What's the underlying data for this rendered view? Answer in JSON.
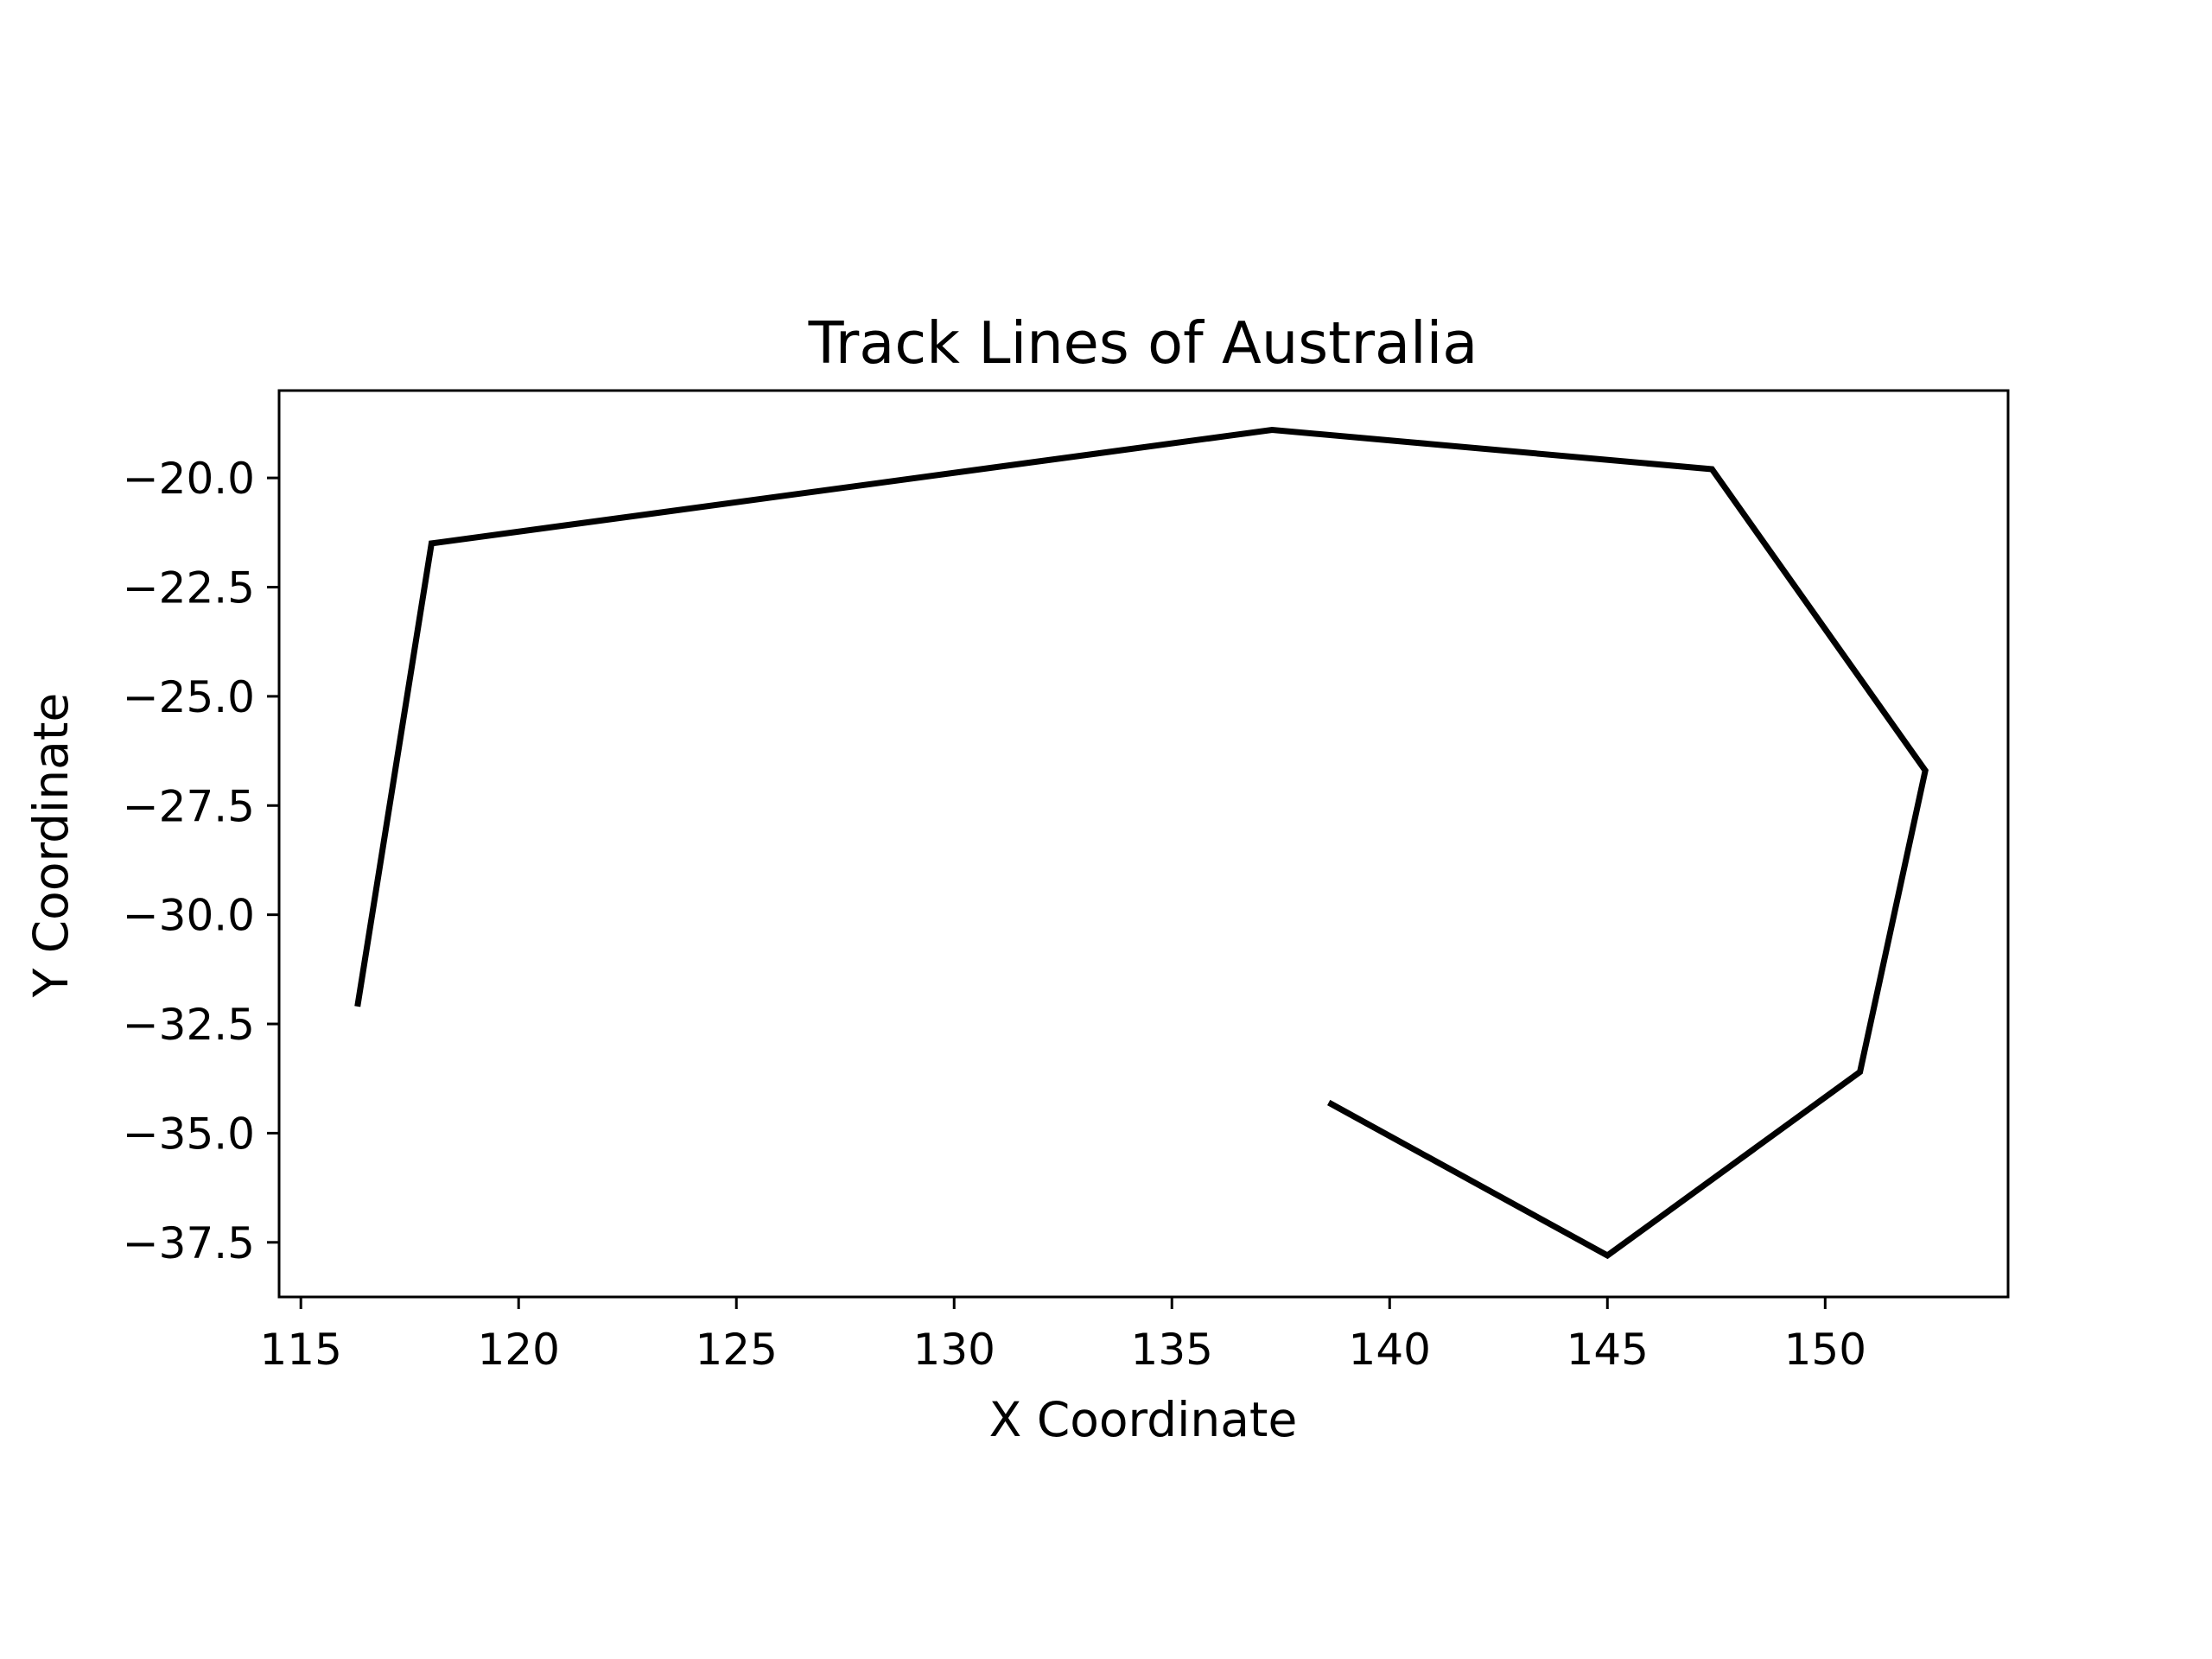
{
  "chart_data": {
    "type": "line",
    "title": "Track Lines of Australia",
    "xlabel": "X Coordinate",
    "ylabel": "Y Coordinate",
    "xlim": [
      114.5,
      154.2
    ],
    "ylim": [
      -38.75,
      -18.0
    ],
    "xticks": [
      115,
      120,
      125,
      130,
      135,
      140,
      145,
      150
    ],
    "xtick_labels": [
      "115",
      "120",
      "125",
      "130",
      "135",
      "140",
      "145",
      "150"
    ],
    "yticks": [
      -20.0,
      -22.5,
      -25.0,
      -27.5,
      -30.0,
      -32.5,
      -35.0,
      -37.5
    ],
    "ytick_labels": [
      "−20.0",
      "−22.5",
      "−25.0",
      "−27.5",
      "−30.0",
      "−32.5",
      "−35.0",
      "−37.5"
    ],
    "grid": false,
    "legend": "none",
    "series": [
      {
        "color": "#000000",
        "x": [
          116.3,
          118.0,
          137.3,
          147.4,
          152.3,
          150.8,
          145.0,
          138.6
        ],
        "y": [
          -32.1,
          -21.5,
          -18.9,
          -19.8,
          -26.7,
          -33.6,
          -37.8,
          -34.3
        ]
      }
    ]
  }
}
